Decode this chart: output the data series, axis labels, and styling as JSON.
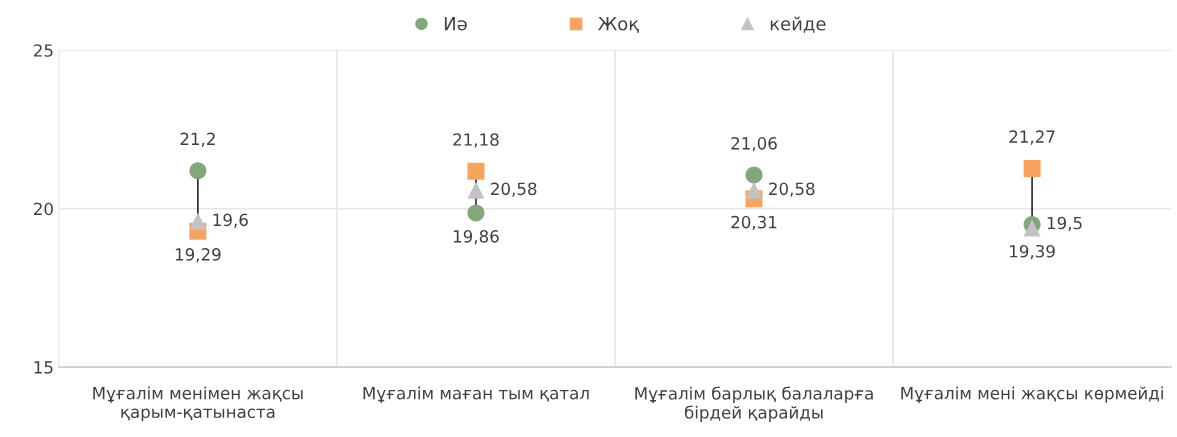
{
  "chart_data": {
    "type": "scatter",
    "categories": [
      "Мұғалім менімен жақсы\nқарым-қатынаста",
      "Мұғалім маған тым қатал",
      "Мұғалім барлық балаларға\nбірдей қарайды",
      "Мұғалім мені жақсы көрмейді"
    ],
    "series": [
      {
        "name": "Иә",
        "color": "#80a878",
        "marker": "circle",
        "values": [
          21.2,
          19.86,
          21.06,
          19.5
        ],
        "value_labels": [
          "21,2",
          "19,86",
          "21,06",
          "19,5"
        ]
      },
      {
        "name": "Жоқ",
        "color": "#f9a45e",
        "marker": "square",
        "values": [
          19.29,
          21.18,
          20.31,
          21.27
        ],
        "value_labels": [
          "19,29",
          "21,18",
          "20,31",
          "21,27"
        ]
      },
      {
        "name": "кейде",
        "color": "#c3c3c3",
        "marker": "triangle",
        "values": [
          19.6,
          20.58,
          20.58,
          19.39
        ],
        "value_labels": [
          "19,6",
          "20,58",
          "20,58",
          "19,39"
        ]
      }
    ],
    "ylim": [
      15,
      25
    ],
    "yticks": [
      15,
      20,
      25
    ],
    "grid": true,
    "legend": "top"
  }
}
